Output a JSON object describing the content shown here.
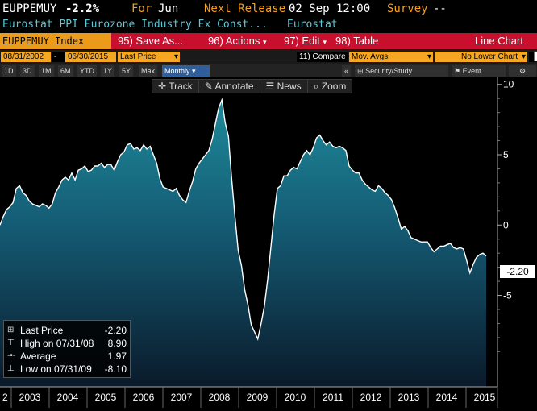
{
  "header": {
    "ticker": "EUPPEMUY",
    "value": "-2.2%",
    "for_label": "For",
    "for_value": "Jun",
    "next_release_label": "Next Release",
    "next_release_value": "02 Sep 12:00",
    "survey_label": "Survey",
    "survey_value": "--",
    "description": "Eurostat PPI Eurozone Industry Ex Const...",
    "source": "Eurostat"
  },
  "toolbar": {
    "index_label": "EUPPEMUY Index",
    "save_num": "95)",
    "save_label": "Save As...",
    "actions_num": "96)",
    "actions_label": "Actions",
    "edit_num": "97)",
    "edit_label": "Edit",
    "table_num": "98)",
    "table_label": "Table",
    "chart_type": "Line Chart"
  },
  "settings": {
    "start_date": "08/31/2002",
    "end_date": "06/30/2015",
    "field": "Last Price",
    "compare_num": "11)",
    "compare_label": "Compare",
    "compare_value": "Mov. Avgs",
    "lower_chart": "No Lower Chart",
    "security_label": "Security/Study",
    "event_label": "Event",
    "chevron": "«"
  },
  "periods": [
    "1D",
    "3D",
    "1M",
    "6M",
    "YTD",
    "1Y",
    "5Y",
    "Max"
  ],
  "frequency": "Monthly",
  "chart_tools": {
    "track": "Track",
    "annotate": "Annotate",
    "news": "News",
    "zoom": "Zoom"
  },
  "legend": {
    "last_label": "Last Price",
    "last_value": "-2.20",
    "high_label": "High on 07/31/08",
    "high_value": "8.90",
    "avg_label": "Average",
    "avg_value": "1.97",
    "low_label": "Low on 07/31/09",
    "low_value": "-8.10"
  },
  "last_tag": "-2.20",
  "colors": {
    "amber": "#f7a11a",
    "cyan_text": "#5ec8d6",
    "red_bar": "#c8102e",
    "area_top": "#1f8a9a",
    "area_bottom": "#0a1a2a"
  },
  "chart_data": {
    "type": "area",
    "x_start": "2002-08",
    "frequency": "monthly",
    "xlabel": "",
    "ylabel": "",
    "ylim": [
      -11.5,
      10.5
    ],
    "y_ticks": [
      10,
      5,
      0,
      -5
    ],
    "y_tick_labels": [
      "10",
      "5",
      "0",
      "-5"
    ],
    "x_ticks": [
      "2",
      "2003",
      "2004",
      "2005",
      "2006",
      "2007",
      "2008",
      "2009",
      "2010",
      "2011",
      "2012",
      "2013",
      "2014",
      "2015"
    ],
    "grid": false,
    "legend_position": "bottom-left",
    "values": [
      0.0,
      0.6,
      1.1,
      1.3,
      1.6,
      2.6,
      2.8,
      2.3,
      2.1,
      1.7,
      1.5,
      1.4,
      1.3,
      1.5,
      1.4,
      1.2,
      1.5,
      2.3,
      2.7,
      3.2,
      3.4,
      3.2,
      3.7,
      3.2,
      3.9,
      4.0,
      4.2,
      3.8,
      3.9,
      4.2,
      4.2,
      4.4,
      4.1,
      4.3,
      4.3,
      3.9,
      4.5,
      5.0,
      5.2,
      5.7,
      5.8,
      5.4,
      5.5,
      5.3,
      5.7,
      5.4,
      5.6,
      5.0,
      4.4,
      3.3,
      2.7,
      2.6,
      2.5,
      2.4,
      2.6,
      2.1,
      1.8,
      1.6,
      2.4,
      3.1,
      4.0,
      4.4,
      4.7,
      5.0,
      5.3,
      6.1,
      7.2,
      8.3,
      8.9,
      7.3,
      6.3,
      3.3,
      0.6,
      -1.8,
      -2.9,
      -4.6,
      -5.7,
      -7.1,
      -7.6,
      -8.1,
      -7.0,
      -5.8,
      -3.9,
      -1.6,
      0.7,
      2.6,
      2.8,
      3.5,
      3.5,
      3.9,
      4.1,
      4.0,
      4.5,
      5.0,
      5.3,
      5.0,
      5.5,
      6.2,
      6.4,
      6.0,
      5.7,
      5.9,
      5.6,
      5.5,
      5.6,
      5.5,
      5.3,
      4.2,
      3.9,
      3.7,
      3.7,
      3.2,
      2.9,
      2.7,
      2.5,
      2.4,
      2.8,
      2.6,
      2.3,
      2.1,
      1.8,
      1.2,
      0.5,
      -0.3,
      -0.1,
      -0.4,
      -0.9,
      -1.0,
      -1.1,
      -1.2,
      -1.2,
      -1.2,
      -1.6,
      -1.9,
      -1.7,
      -1.5,
      -1.5,
      -1.4,
      -1.3,
      -1.6,
      -1.7,
      -1.6,
      -1.7,
      -2.5,
      -3.4,
      -2.8,
      -2.3,
      -2.1,
      -2.0,
      -2.2
    ]
  }
}
